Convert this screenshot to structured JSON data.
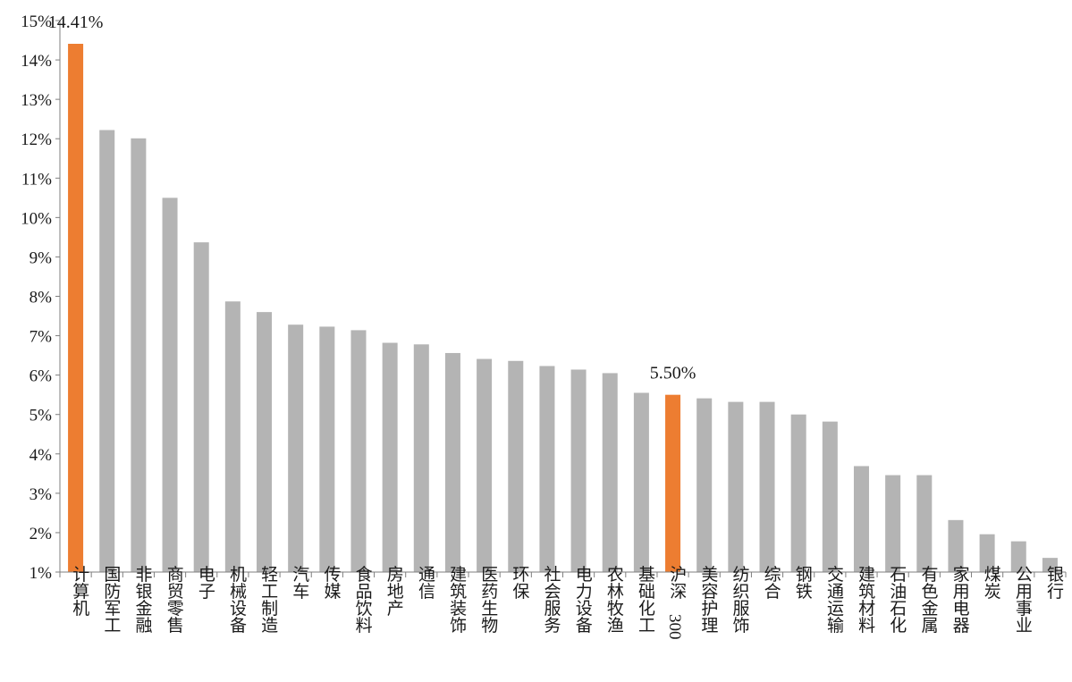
{
  "chart_data": {
    "type": "bar",
    "title": "",
    "xlabel": "",
    "ylabel": "",
    "ylim": [
      1,
      15
    ],
    "yticks": [
      "1%",
      "2%",
      "3%",
      "4%",
      "5%",
      "6%",
      "7%",
      "8%",
      "9%",
      "10%",
      "11%",
      "12%",
      "13%",
      "14%",
      "15%"
    ],
    "grid": false,
    "categories": [
      "计算机",
      "国防军工",
      "非银金融",
      "商贸零售",
      "电子",
      "机械设备",
      "轻工制造",
      "汽车",
      "传媒",
      "食品饮料",
      "房地产",
      "通信",
      "建筑装饰",
      "医药生物",
      "环保",
      "社会服务",
      "电力设备",
      "农林牧渔",
      "基础化工",
      "沪深300",
      "美容护理",
      "纺织服饰",
      "综合",
      "钢铁",
      "交通运输",
      "建筑材料",
      "石油石化",
      "有色金属",
      "家用电器",
      "煤炭",
      "公用事业",
      "银行"
    ],
    "values": [
      14.41,
      12.22,
      12.01,
      10.5,
      9.37,
      7.87,
      7.6,
      7.28,
      7.23,
      7.14,
      6.82,
      6.78,
      6.56,
      6.41,
      6.36,
      6.23,
      6.14,
      6.05,
      5.55,
      5.5,
      5.41,
      5.32,
      5.32,
      5.0,
      4.82,
      3.69,
      3.46,
      3.46,
      2.32,
      1.96,
      1.78,
      1.36
    ],
    "highlight": [
      "计算机",
      "沪深300"
    ],
    "data_labels": [
      {
        "category": "计算机",
        "text": "14.41%"
      },
      {
        "category": "沪深300",
        "text": "5.50%"
      }
    ],
    "colors": {
      "default": "#b4b4b4",
      "highlight": "#ed7d31",
      "axis": "#7f7f7f"
    }
  }
}
